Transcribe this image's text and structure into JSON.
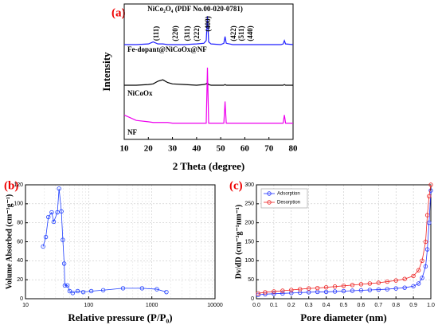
{
  "chart_data": [
    {
      "type": "line",
      "panel_label": "(a)",
      "xlabel": "2 Theta (degree)",
      "ylabel": "Intensity",
      "xlim": [
        10,
        80
      ],
      "xticks": [
        10,
        20,
        30,
        40,
        50,
        60,
        70,
        80
      ],
      "ylim": [
        0,
        100
      ],
      "annotations": [
        "NiCo₂O₄ (PDF No.00-020-0781)",
        "(111)",
        "(220)",
        "(311)",
        "(222)",
        "(400)",
        "(422)",
        "(511)",
        "(440)"
      ],
      "x": [
        10,
        15,
        20,
        22,
        24,
        26,
        28,
        30,
        35,
        40,
        43,
        44,
        44.5,
        45,
        46,
        50,
        51.3,
        51.8,
        52.3,
        55,
        60,
        65,
        70,
        75,
        75.9,
        76.4,
        76.9,
        80
      ],
      "series": [
        {
          "name": "Fe-dopant@NiCoOx@NF",
          "color": "#1f1fff",
          "values": [
            70,
            70,
            70.5,
            72,
            70.5,
            70.5,
            70,
            70,
            70,
            70.5,
            71,
            73,
            91,
            72,
            70.5,
            70,
            71,
            76,
            71,
            70,
            70,
            70,
            70,
            70,
            70.5,
            73,
            70.5,
            70
          ]
        },
        {
          "name": "NiCoOx",
          "color": "#000000",
          "values": [
            40,
            40,
            40.5,
            41,
            43,
            44,
            42,
            41,
            40.5,
            40,
            40.5,
            41,
            42,
            40.5,
            40,
            40,
            40,
            40.5,
            40,
            40,
            40,
            40,
            40,
            40,
            40,
            40.5,
            40,
            40
          ]
        },
        {
          "name": "NF",
          "color": "#ee00ee",
          "values": [
            18,
            14,
            13,
            12.5,
            12.5,
            12.5,
            12.5,
            12,
            12,
            12,
            12,
            12,
            53,
            12,
            12,
            12,
            12,
            28,
            12,
            12,
            12,
            12,
            12,
            12,
            12,
            18,
            12,
            12
          ]
        }
      ]
    },
    {
      "type": "line",
      "panel_label": "(b)",
      "xlabel": "Relative pressure (P/P₀)",
      "ylabel": "Volume Absorbed (cm⁻³g⁻¹)",
      "xscale": "log",
      "grid": true,
      "markers": true,
      "xlim": [
        10,
        10000
      ],
      "xticks": [
        10,
        100,
        1000,
        10000
      ],
      "ylim": [
        0,
        120
      ],
      "yticks": [
        0,
        20,
        40,
        60,
        80,
        100,
        120
      ],
      "x": [
        19,
        21,
        23,
        26,
        28,
        32,
        34,
        37,
        39,
        41,
        42,
        46,
        50,
        56,
        67,
        82,
        110,
        170,
        350,
        700,
        1200,
        1700
      ],
      "series": [
        {
          "color": "#1f3fff",
          "values": [
            55,
            65,
            86,
            91,
            81,
            91,
            116,
            92,
            62,
            37,
            14,
            14,
            8,
            6,
            8,
            7,
            8,
            9,
            11,
            11,
            10,
            7
          ]
        }
      ]
    },
    {
      "type": "line",
      "panel_label": "(c)",
      "xlabel": "Pore diameter (nm)",
      "ylabel": "Dv/dD (cm⁻³g⁻¹nm⁻¹)",
      "grid": true,
      "markers": true,
      "legend": "upper left",
      "xlim": [
        0,
        1
      ],
      "xticks": [
        {
          "value": 0,
          "label": "0.0"
        },
        0.1,
        0.2,
        0.3,
        0.4,
        0.5,
        0.6,
        0.7,
        0.8,
        0.9,
        {
          "value": 1,
          "label": "1.0"
        }
      ],
      "ylim": [
        0,
        300
      ],
      "yticks": [
        0,
        50,
        100,
        150,
        200,
        250,
        300
      ],
      "x": [
        0.01,
        0.05,
        0.1,
        0.15,
        0.2,
        0.25,
        0.3,
        0.35,
        0.4,
        0.45,
        0.5,
        0.55,
        0.6,
        0.65,
        0.7,
        0.75,
        0.8,
        0.85,
        0.9,
        0.93,
        0.95,
        0.97,
        0.98,
        0.99,
        1.0
      ],
      "series": [
        {
          "name": "Adsorption",
          "color": "#2233ff",
          "values": [
            10,
            12,
            13,
            14,
            15,
            16,
            17,
            18,
            18,
            19,
            20,
            21,
            22,
            23,
            24,
            25,
            27,
            29,
            33,
            40,
            55,
            85,
            130,
            200,
            285
          ]
        },
        {
          "name": "Desorption",
          "color": "#ee2222",
          "values": [
            14,
            17,
            19,
            21,
            23,
            25,
            27,
            28,
            30,
            32,
            34,
            36,
            38,
            40,
            42,
            45,
            48,
            52,
            60,
            75,
            100,
            150,
            220,
            270,
            300
          ]
        }
      ]
    }
  ]
}
